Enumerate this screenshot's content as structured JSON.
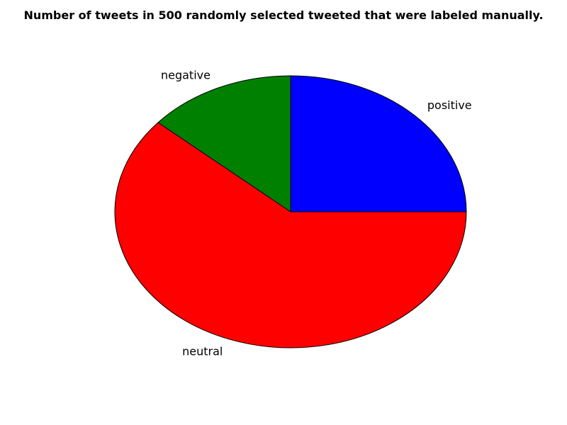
{
  "chart_data": {
    "type": "pie",
    "title": "Number of tweets in 500 randomly selected tweeted that were labeled manually.",
    "start_angle_deg": 0,
    "direction": "counterclockwise",
    "slices": [
      {
        "label": "positive",
        "value": 125,
        "color": "#0000ff"
      },
      {
        "label": "negative",
        "value": 68,
        "color": "#008000"
      },
      {
        "label": "neutral",
        "value": 307,
        "color": "#ff0000"
      }
    ],
    "legend": "none"
  }
}
